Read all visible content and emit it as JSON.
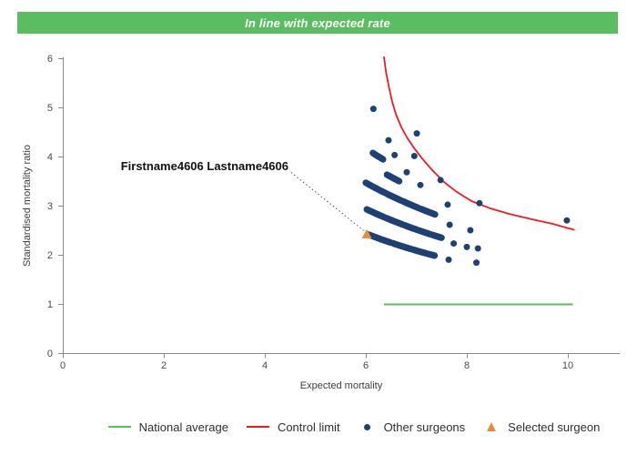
{
  "header": {
    "title": "In line with expected rate",
    "bg_color": "#5bbd62",
    "text_color": "#ffffff"
  },
  "chart_data": {
    "type": "scatter",
    "title": "",
    "xlabel": "Expected mortality",
    "ylabel": "Standardised mortality ratio",
    "xlim": [
      0,
      11
    ],
    "ylim": [
      0,
      6
    ],
    "x_ticks": [
      0,
      2,
      4,
      6,
      8,
      10
    ],
    "y_ticks": [
      0,
      1,
      2,
      3,
      4,
      5,
      6
    ],
    "grid": false,
    "colors": {
      "national_average": "#5cbc62",
      "control_limit": "#ed1c24",
      "other_surgeons": "#1e4175",
      "selected_surgeon": "#ec8b33",
      "axis": "#8a8a8a",
      "tick_text": "#4a4a4a"
    },
    "national_average": {
      "label": "National average",
      "y": 1,
      "x_from": 6.36,
      "x_to": 10.1
    },
    "control_limit": {
      "label": "Control limit",
      "points": [
        [
          6.36,
          6.02
        ],
        [
          6.4,
          5.72
        ],
        [
          6.45,
          5.45
        ],
        [
          6.52,
          5.12
        ],
        [
          6.6,
          4.85
        ],
        [
          6.7,
          4.6
        ],
        [
          6.82,
          4.38
        ],
        [
          6.95,
          4.18
        ],
        [
          7.1,
          3.98
        ],
        [
          7.3,
          3.74
        ],
        [
          7.55,
          3.48
        ],
        [
          7.8,
          3.28
        ],
        [
          8.1,
          3.09
        ],
        [
          8.45,
          2.95
        ],
        [
          8.85,
          2.83
        ],
        [
          9.3,
          2.72
        ],
        [
          9.7,
          2.63
        ],
        [
          10.12,
          2.51
        ]
      ]
    },
    "other_surgeons": {
      "label": "Other surgeons",
      "bands_model": "dense arcs of surgeons sharing a death count: smr = k / expected",
      "bands": [
        {
          "k": 25.0,
          "segments": [
            [
              6.14,
              6.35
            ]
          ]
        },
        {
          "k": 23.3,
          "segments": [
            [
              6.42,
              6.66
            ]
          ]
        },
        {
          "k": 20.8,
          "segments": [
            [
              6.0,
              6.38
            ],
            [
              6.42,
              6.7
            ],
            [
              6.74,
              7.05
            ],
            [
              7.09,
              7.37
            ]
          ]
        },
        {
          "k": 17.6,
          "segments": [
            [
              6.02,
              6.36
            ],
            [
              6.4,
              6.72
            ],
            [
              6.76,
              7.02
            ],
            [
              7.06,
              7.28
            ],
            [
              7.32,
              7.5
            ]
          ]
        },
        {
          "k": 14.6,
          "segments": [
            [
              6.05,
              6.5
            ],
            [
              6.54,
              6.9
            ],
            [
              6.94,
              7.2
            ],
            [
              7.24,
              7.37
            ]
          ]
        }
      ],
      "points": [
        [
          6.15,
          4.97
        ],
        [
          7.01,
          4.47
        ],
        [
          6.45,
          4.33
        ],
        [
          6.57,
          4.03
        ],
        [
          6.96,
          4.01
        ],
        [
          6.81,
          3.68
        ],
        [
          7.08,
          3.42
        ],
        [
          7.48,
          3.52
        ],
        [
          7.62,
          3.02
        ],
        [
          8.25,
          3.05
        ],
        [
          9.98,
          2.7
        ],
        [
          8.07,
          2.5
        ],
        [
          7.66,
          2.61
        ],
        [
          7.74,
          2.23
        ],
        [
          8.0,
          2.16
        ],
        [
          8.22,
          2.13
        ],
        [
          7.64,
          1.9
        ],
        [
          8.19,
          1.84
        ]
      ]
    },
    "selected_surgeon": {
      "label": "Selected surgeon",
      "x": 6.02,
      "y": 2.42
    },
    "annotation": {
      "text": "Firstname4606 Lastname4606"
    }
  },
  "legend": {
    "items": [
      {
        "label": "National average",
        "marker": "line",
        "color": "#5cbc62"
      },
      {
        "label": "Control limit",
        "marker": "line",
        "color": "#ed1c24"
      },
      {
        "label": "Other surgeons",
        "marker": "dot",
        "color": "#1e4175"
      },
      {
        "label": "Selected surgeon",
        "marker": "triangle",
        "color": "#ec8b33"
      }
    ]
  }
}
